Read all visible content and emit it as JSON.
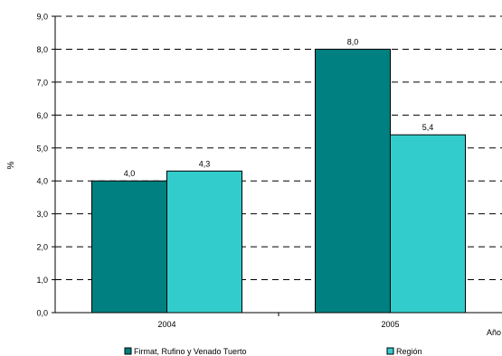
{
  "chart_data": {
    "type": "bar",
    "categories": [
      "2004",
      "2005"
    ],
    "series": [
      {
        "name": "Firmat, Rufino y Venado Tuerto",
        "values": [
          4.0,
          8.0
        ],
        "labels": [
          "4,0",
          "8,0"
        ],
        "color": "#008080"
      },
      {
        "name": "Región",
        "values": [
          4.3,
          5.4
        ],
        "labels": [
          "4,3",
          "5,4"
        ],
        "color": "#33CCCC"
      }
    ],
    "ylabel": "%",
    "xlabel": "Año",
    "ylim": [
      0,
      9
    ],
    "yticks": [
      0,
      1,
      2,
      3,
      4,
      5,
      6,
      7,
      8,
      9
    ],
    "ytick_labels": [
      "0,0",
      "1,0",
      "2,0",
      "3,0",
      "4,0",
      "5,0",
      "6,0",
      "7,0",
      "8,0",
      "9,0"
    ],
    "grid": "dashed horizontal",
    "legend_position": "bottom"
  }
}
